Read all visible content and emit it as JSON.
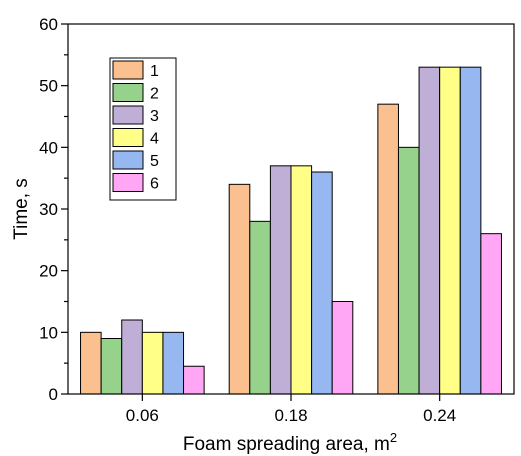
{
  "chart_data": {
    "type": "bar",
    "title": "",
    "xlabel": "Foam spreading area, m",
    "xlabel_superscript": "2",
    "ylabel": "Time, s",
    "categories": [
      "0.06",
      "0.18",
      "0.24"
    ],
    "ylim": [
      0,
      60
    ],
    "yticks": [
      "0",
      "10",
      "20",
      "30",
      "40",
      "50",
      "60"
    ],
    "grid": false,
    "legend_position": "top-left",
    "series": [
      {
        "name": "1",
        "color": "#FAC08F",
        "values": [
          10,
          34,
          47
        ]
      },
      {
        "name": "2",
        "color": "#96D28C",
        "values": [
          9,
          28,
          40
        ]
      },
      {
        "name": "3",
        "color": "#BFAED6",
        "values": [
          12,
          37,
          53
        ]
      },
      {
        "name": "4",
        "color": "#FFFF88",
        "values": [
          10,
          37,
          53
        ]
      },
      {
        "name": "5",
        "color": "#97B7F0",
        "values": [
          10,
          36,
          53
        ]
      },
      {
        "name": "6",
        "color": "#FFA6F5",
        "values": [
          4.5,
          15,
          26
        ]
      }
    ]
  }
}
